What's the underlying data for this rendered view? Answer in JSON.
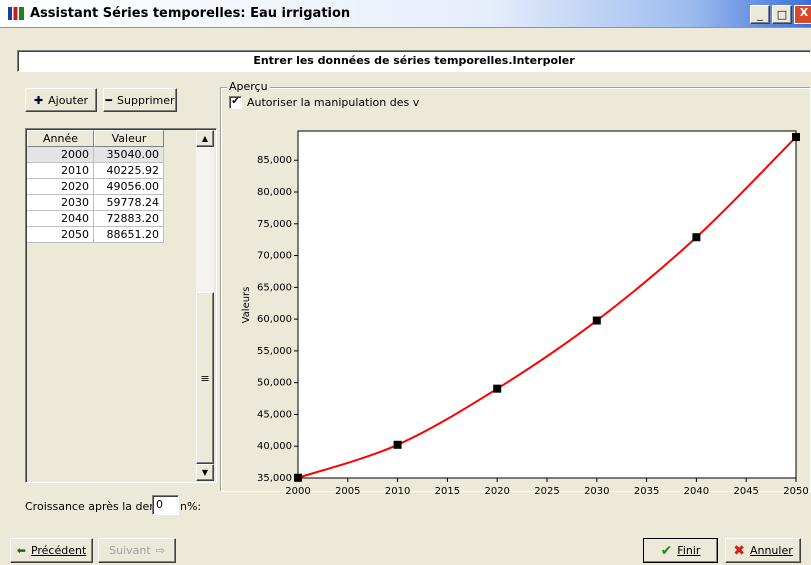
{
  "window": {
    "title": "Assistant Séries temporelles: Eau irrigation"
  },
  "header": {
    "title": "Entrer les données de séries temporelles.Interpoler"
  },
  "toolbar": {
    "add": "Ajouter",
    "remove": "Supprimer"
  },
  "table": {
    "columns": [
      "Année",
      "Valeur"
    ],
    "rows": [
      [
        "2000",
        "35040.00"
      ],
      [
        "2010",
        "40225.92"
      ],
      [
        "2020",
        "49056.00"
      ],
      [
        "2030",
        "59778.24"
      ],
      [
        "2040",
        "72883.20"
      ],
      [
        "2050",
        "88651.20"
      ]
    ]
  },
  "growth": {
    "label": "Croissance après la dernie",
    "value": "0",
    "suffix": "n%:"
  },
  "preview": {
    "group": "Aperçu",
    "checkbox": "Autoriser la manipulation des v"
  },
  "chart_data": {
    "type": "line",
    "ylabel": "Valeurs",
    "x": [
      2000,
      2010,
      2020,
      2030,
      2040,
      2050
    ],
    "series": [
      {
        "color": "#ff0000",
        "marker_color": "#000000",
        "values": [
          35040,
          40225.92,
          49056,
          59778.24,
          72883.2,
          88651.2
        ]
      }
    ],
    "xlim": [
      2000,
      2050
    ],
    "xticks": [
      2000,
      2005,
      2010,
      2015,
      2020,
      2025,
      2030,
      2035,
      2040,
      2045,
      2050
    ],
    "ylim": [
      35000,
      89600
    ],
    "yticks": [
      {
        "value": 35000,
        "label": "35,000"
      },
      {
        "value": 40000,
        "label": "40,000"
      },
      {
        "value": 45000,
        "label": "45,000"
      },
      {
        "value": 50000,
        "label": "50,000"
      },
      {
        "value": 55000,
        "label": "55,000"
      },
      {
        "value": 60000,
        "label": "60,000"
      },
      {
        "value": 65000,
        "label": "65,000"
      },
      {
        "value": 70000,
        "label": "70,000"
      },
      {
        "value": 75000,
        "label": "75,000"
      },
      {
        "value": 80000,
        "label": "80,000"
      },
      {
        "value": 85000,
        "label": "85,000"
      }
    ],
    "grid": false
  },
  "footer": {
    "previous": "Précédent",
    "next": "Suivant",
    "finish": "Finir",
    "cancel": "Annuler"
  }
}
